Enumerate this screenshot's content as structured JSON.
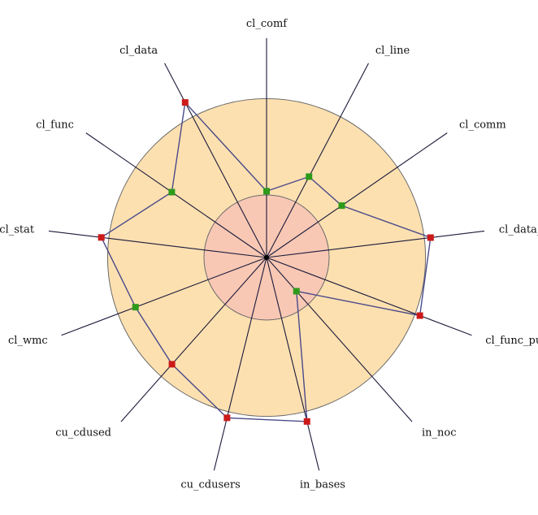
{
  "chart_data": {
    "type": "radar",
    "axes": [
      "cl_comf",
      "cl_line",
      "cl_comm",
      "cl_data_publ",
      "cl_func_publ",
      "in_noc",
      "in_bases",
      "cu_cdusers",
      "cu_cdused",
      "cl_wmc",
      "cl_stat",
      "cl_func",
      "cl_data"
    ],
    "values": [
      0.53,
      0.73,
      0.73,
      1.32,
      1.31,
      0.36,
      1.35,
      1.32,
      1.14,
      1.12,
      1.33,
      0.92,
      1.4
    ],
    "rings": [
      0.5,
      1.27
    ],
    "status": [
      "ok",
      "ok",
      "ok",
      "bad",
      "bad",
      "ok",
      "bad",
      "bad",
      "bad",
      "ok",
      "bad",
      "ok",
      "bad"
    ],
    "colors": {
      "inner_ring": "#f8c8b4",
      "outer_ring": "#fde0b0",
      "ring_stroke": "#6a6a6a",
      "spoke": "#1a1a3a",
      "polygon": "#4a4a8a",
      "ok_marker": "#2e9a1a",
      "bad_marker": "#cc1a1a"
    },
    "legend": "none",
    "grid": false
  }
}
